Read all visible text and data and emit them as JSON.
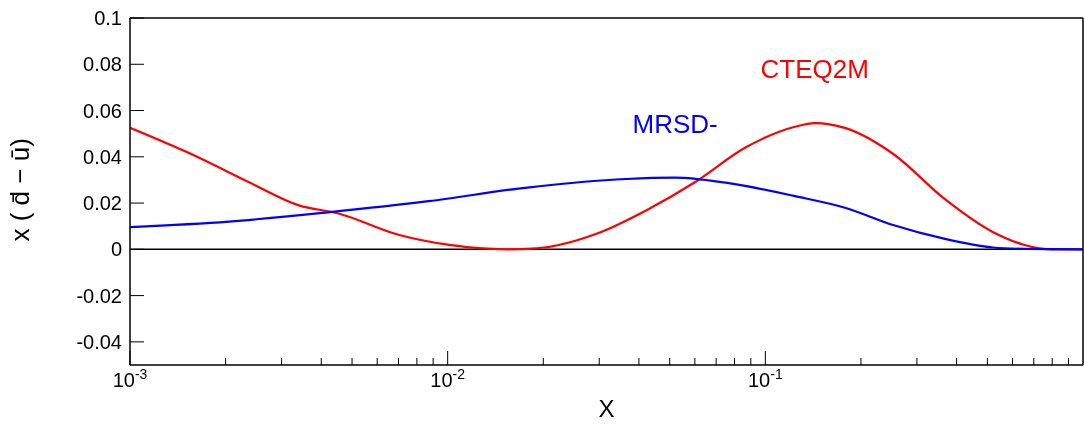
{
  "chart_data": {
    "type": "line",
    "xlabel": "X",
    "ylabel": "x ( d̄ − ū)",
    "log": "x",
    "legend": false,
    "marker": "none",
    "line_style": "solid",
    "xlim": [
      0.001,
      1
    ],
    "xticks": [
      {
        "value": 0.001,
        "label": "10$^{-3}$"
      },
      {
        "value": 0.002,
        "label": null
      },
      {
        "value": 0.003,
        "label": null
      },
      {
        "value": 0.004,
        "label": null
      },
      {
        "value": 0.005,
        "label": null
      },
      {
        "value": 0.006,
        "label": null
      },
      {
        "value": 0.007,
        "label": null
      },
      {
        "value": 0.008,
        "label": null
      },
      {
        "value": 0.009,
        "label": null
      },
      {
        "value": 0.01,
        "label": "10$^{-2}$"
      },
      {
        "value": 0.02,
        "label": null
      },
      {
        "value": 0.03,
        "label": null
      },
      {
        "value": 0.04,
        "label": null
      },
      {
        "value": 0.05,
        "label": null
      },
      {
        "value": 0.06,
        "label": null
      },
      {
        "value": 0.07,
        "label": null
      },
      {
        "value": 0.08,
        "label": null
      },
      {
        "value": 0.09,
        "label": null
      },
      {
        "value": 0.1,
        "label": "10$^{-1}$"
      },
      {
        "value": 0.2,
        "label": null
      },
      {
        "value": 0.3,
        "label": null
      },
      {
        "value": 0.4,
        "label": null
      },
      {
        "value": 0.5,
        "label": null
      },
      {
        "value": 0.6,
        "label": null
      },
      {
        "value": 0.7,
        "label": null
      },
      {
        "value": 0.8,
        "label": null
      },
      {
        "value": 0.9,
        "label": null
      }
    ],
    "ylim": [
      -0.05,
      0.1
    ],
    "yticks": [
      -0.04,
      -0.02,
      0,
      0.02,
      0.04,
      0.06,
      0.08,
      0.1
    ],
    "ref_lines": [
      {
        "axis": "y",
        "value": 0,
        "color": "#000000"
      }
    ],
    "series": [
      {
        "name": "CTEQ2M",
        "color": "#ff0000",
        "x": [
          0.001,
          0.00165,
          0.00237,
          0.0034,
          0.00453,
          0.007,
          0.01,
          0.0154,
          0.019,
          0.0294,
          0.042,
          0.06,
          0.0866,
          0.124,
          0.143,
          0.178,
          0.254,
          0.365,
          0.52,
          0.65,
          0.8,
          1
        ],
        "values": [
          0.0525,
          0.0396,
          0.029,
          0.019,
          0.0155,
          0.0063,
          0.002,
          0,
          0.0004,
          0.0067,
          0.0167,
          0.029,
          0.044,
          0.053,
          0.0546,
          0.0525,
          0.041,
          0.022,
          0.0075,
          0.002,
          0,
          0
        ]
      },
      {
        "name": "MRSD-",
        "color": "#0000ff",
        "x": [
          0.001,
          0.00205,
          0.0042,
          0.0087,
          0.0178,
          0.0365,
          0.052,
          0.075,
          0.124,
          0.178,
          0.254,
          0.365,
          0.52,
          0.65,
          1
        ],
        "values": [
          0.0096,
          0.012,
          0.016,
          0.0208,
          0.0267,
          0.0304,
          0.031,
          0.0288,
          0.023,
          0.018,
          0.0104,
          0.0046,
          0.0008,
          0.0002,
          0
        ]
      }
    ]
  }
}
